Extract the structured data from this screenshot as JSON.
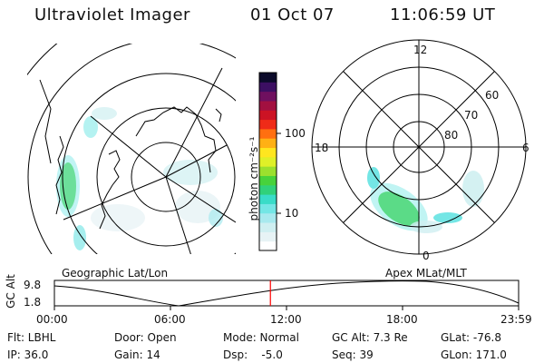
{
  "header": {
    "instrument": "Ultraviolet Imager",
    "date": "01 Oct 07",
    "time": "11:06:59 UT"
  },
  "colorbar": {
    "label": "photon cm⁻²s⁻¹",
    "ticks": [
      "100",
      "10"
    ],
    "colors": [
      "#ffffff",
      "#e7f3f5",
      "#cfeff1",
      "#a8e9ee",
      "#74e6e5",
      "#39dcc8",
      "#30d17a",
      "#47d23b",
      "#9be02e",
      "#dff028",
      "#ffe61f",
      "#ffb014",
      "#ff6f10",
      "#ef2b18",
      "#cc1324",
      "#a21040",
      "#6f105f",
      "#3c0f62",
      "#0b0a2a"
    ]
  },
  "left_panel": {
    "caption": "Geographic Lat/Lon"
  },
  "right_panel": {
    "caption": "Apex MLat/MLT",
    "clock_labels": {
      "top": "12",
      "left": "18",
      "right": "6",
      "bottom": "0"
    },
    "lat_labels": [
      "60",
      "70",
      "80"
    ]
  },
  "altitude_plot": {
    "ylabel": "GC Alt",
    "yticks": [
      "9.8",
      "1.8"
    ],
    "xticks": [
      "00:00",
      "06:00",
      "12:00",
      "18:00",
      "23:59"
    ],
    "current_time_fraction": 0.4653,
    "current_marker_color": "#ff0000"
  },
  "footer": {
    "filter": "Flt: LBHL",
    "ip": "IP: 36.0",
    "door": "Door: Open",
    "gain": "Gain: 14",
    "mode": "Mode: Normal",
    "dsp": "Dsp:    -5.0",
    "gc_alt": "GC Alt: 7.3 Re",
    "seq": "Seq: 39",
    "glat": "GLat: -76.8",
    "glon": "GLon: 171.0"
  }
}
